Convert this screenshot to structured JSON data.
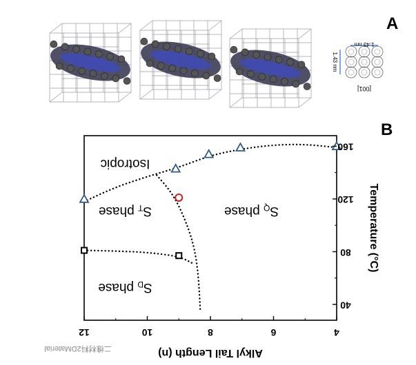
{
  "panel_a": {
    "label": "A",
    "axis_label": "[001]",
    "dim_horizontal": "1.43 nm",
    "dim_vertical": "1.43 nm"
  },
  "panel_b": {
    "label": "B"
  },
  "watermark": "二维材料2DMaterial",
  "chart_data": {
    "type": "scatter",
    "xlabel": "Alkyl Tail Length (n)",
    "ylabel": "Temperature (°C)",
    "xlim": [
      12,
      4
    ],
    "ylim": [
      28,
      168
    ],
    "x_ticks": [
      12,
      10,
      8,
      6,
      4
    ],
    "y_ticks": [
      40,
      80,
      120,
      160
    ],
    "grid": false,
    "regions": [
      {
        "label": "Isotropic",
        "x": 10.7,
        "y": 147
      },
      {
        "label": "S",
        "subscript": "T",
        "suffix": " phase",
        "x": 10.7,
        "y": 111
      },
      {
        "label": "S",
        "subscript": "D",
        "suffix": " phase",
        "x": 10.7,
        "y": 53
      },
      {
        "label": "S",
        "subscript": "Q",
        "suffix": " phase",
        "x": 6.7,
        "y": 111
      }
    ],
    "series": [
      {
        "marker": "triangle",
        "color": "#2e5b8a",
        "points": [
          [
            12,
            120
          ],
          [
            9.1,
            143
          ],
          [
            8.05,
            154
          ],
          [
            7.05,
            159
          ],
          [
            4,
            160
          ]
        ]
      },
      {
        "marker": "circle",
        "color": "#d22020",
        "points": [
          [
            9,
            121
          ]
        ]
      },
      {
        "marker": "square",
        "color": "#000000",
        "points": [
          [
            12,
            81
          ],
          [
            9,
            77
          ]
        ]
      }
    ],
    "boundaries": [
      {
        "points": [
          [
            12,
            118
          ],
          [
            11,
            129
          ],
          [
            10,
            137
          ],
          [
            9,
            144
          ],
          [
            8,
            153
          ],
          [
            7,
            158
          ],
          [
            6,
            161
          ],
          [
            5,
            161.5
          ],
          [
            4,
            159
          ]
        ]
      },
      {
        "points": [
          [
            9.7,
            138
          ],
          [
            9.3,
            127
          ],
          [
            9,
            115
          ],
          [
            8.7,
            98
          ],
          [
            8.5,
            82
          ],
          [
            8.38,
            62
          ],
          [
            8.32,
            35
          ]
        ]
      },
      {
        "points": [
          [
            12,
            81
          ],
          [
            11,
            80.5
          ],
          [
            10,
            79.5
          ],
          [
            9,
            76.5
          ],
          [
            8.55,
            71
          ]
        ]
      }
    ]
  }
}
